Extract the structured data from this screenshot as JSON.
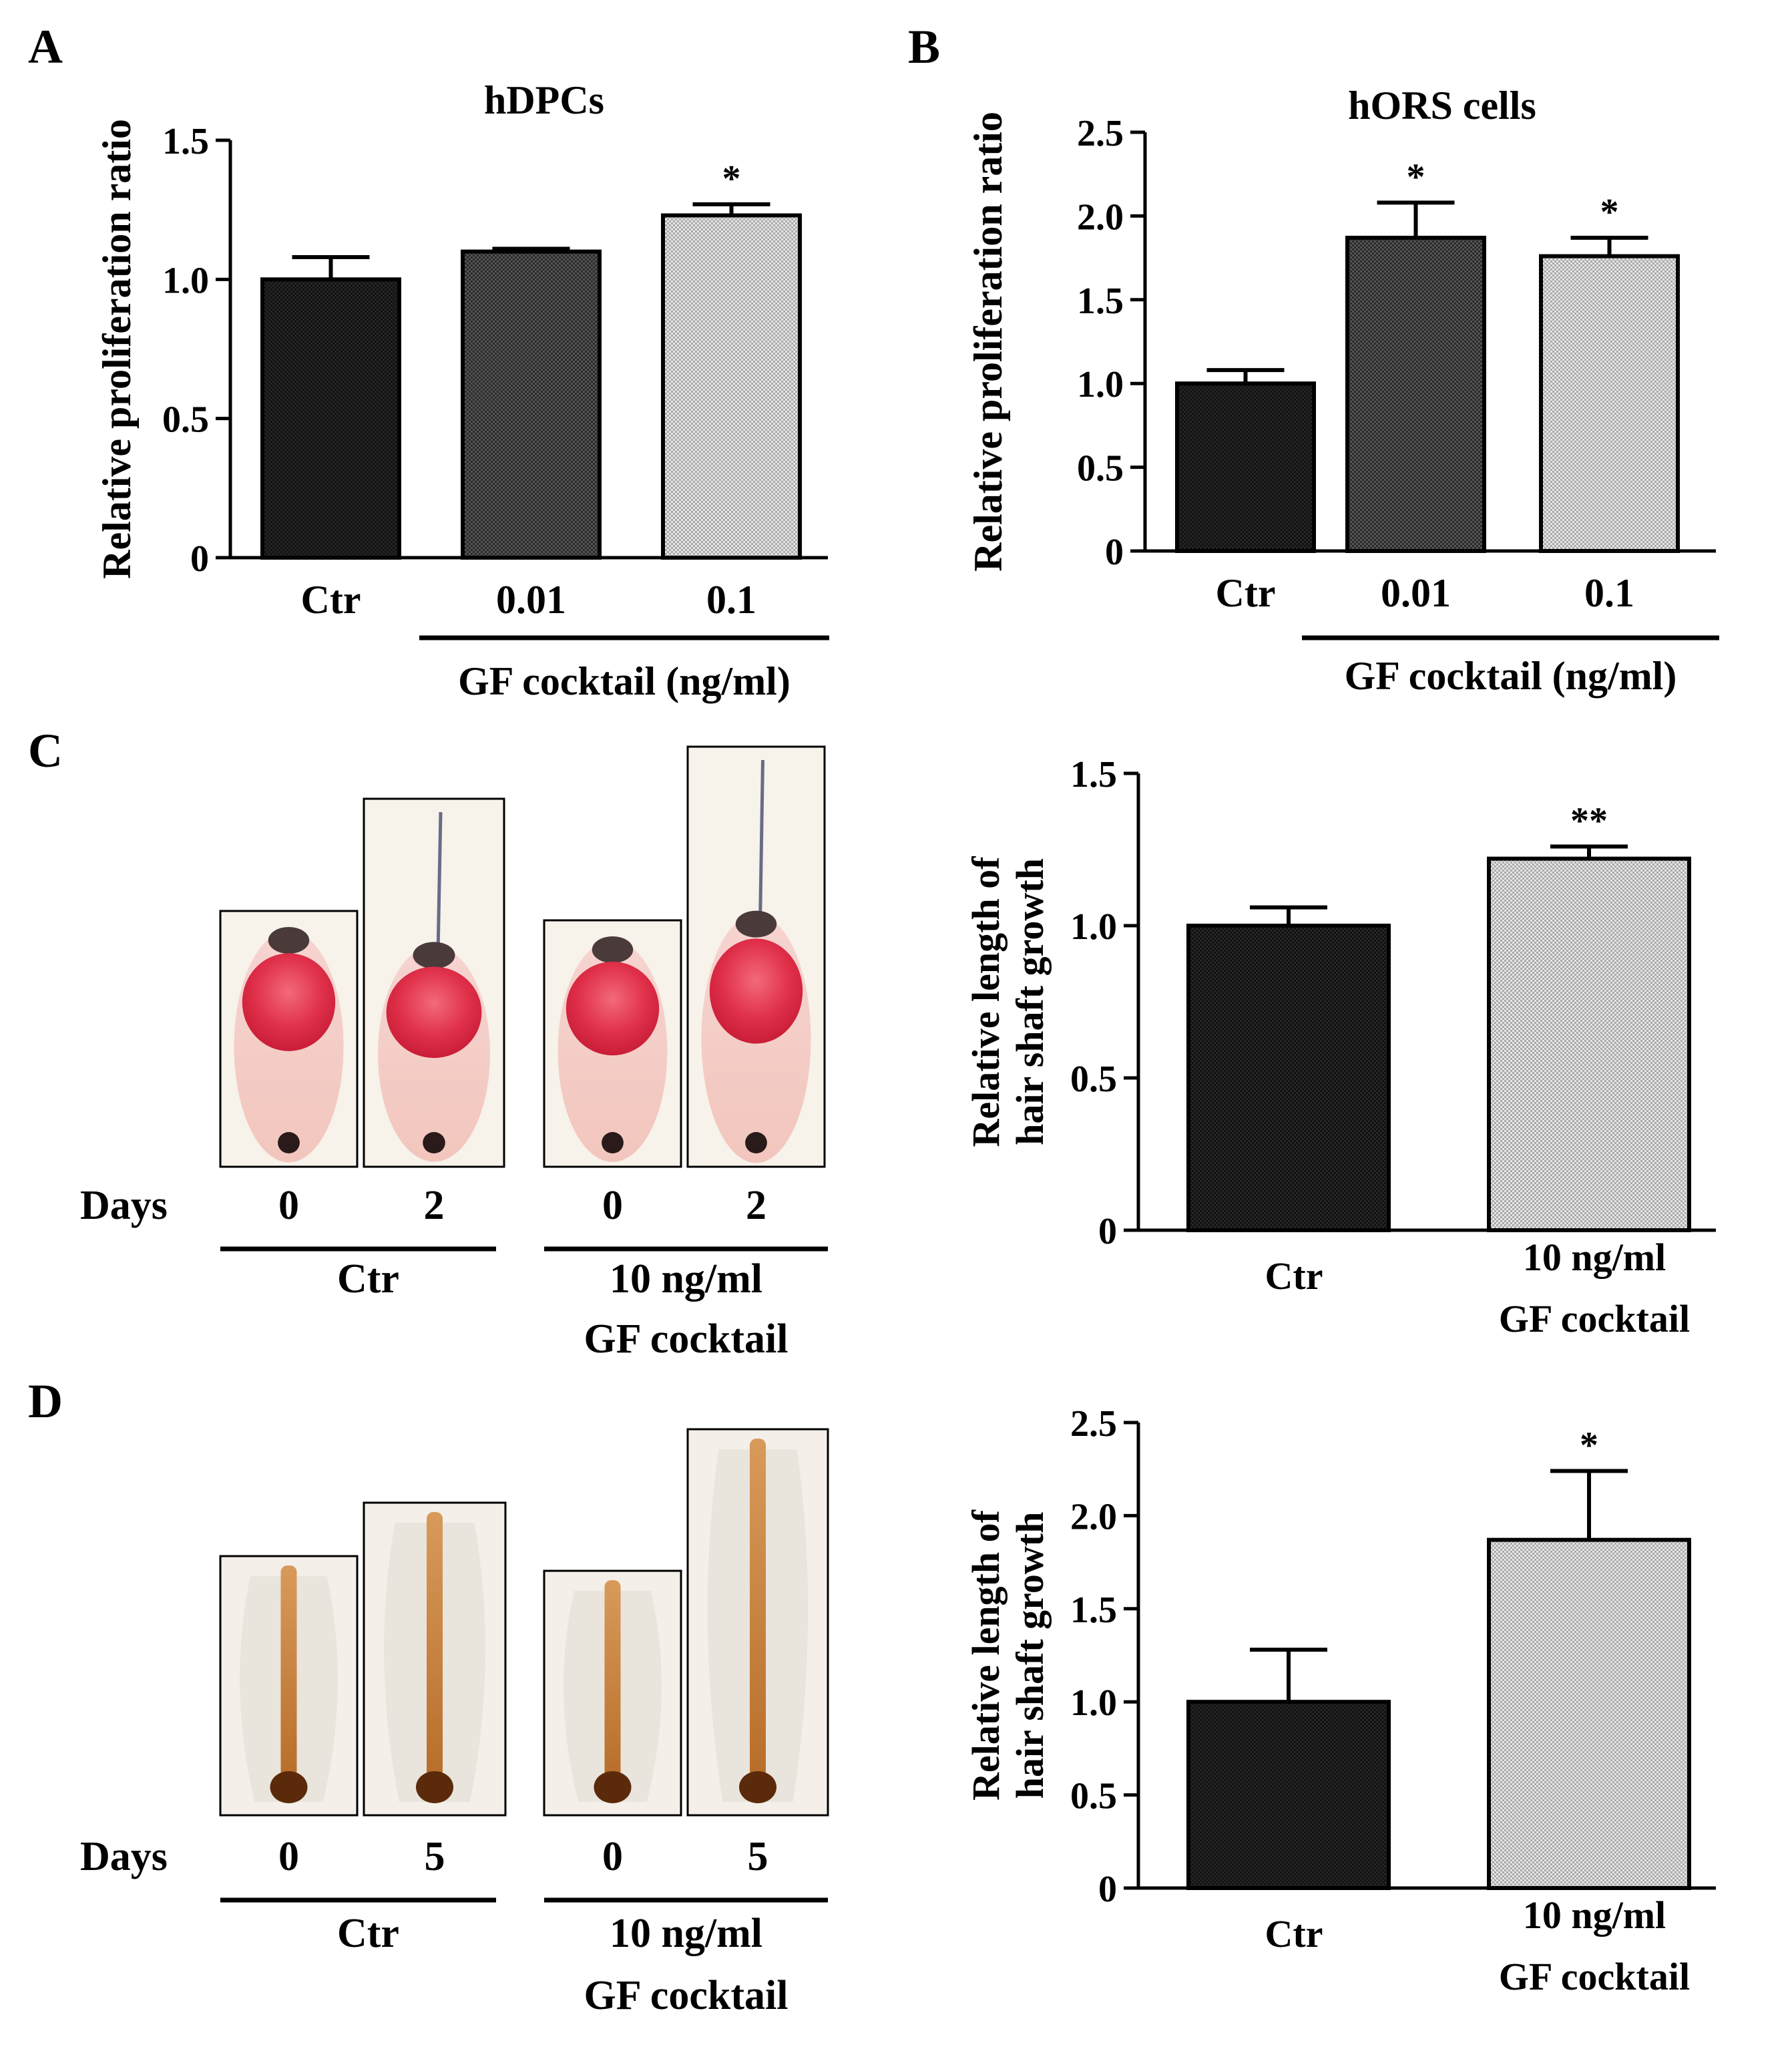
{
  "panel_labels": [
    "A",
    "B",
    "C",
    "D"
  ],
  "colors": {
    "dark": "#1a1a1a",
    "mid": "#3d3d3d",
    "light": "#cfcfcf",
    "frame": "#000000"
  },
  "chart_data": [
    {
      "id": "A",
      "type": "bar",
      "title": "hDPCs",
      "ylabel": "Relative proliferation ratio",
      "xlabel": "",
      "group_label": "GF cocktail (ng/ml)",
      "categories": [
        "Ctr",
        "0.01",
        "0.1"
      ],
      "values": [
        1.0,
        1.1,
        1.23
      ],
      "errors": [
        0.08,
        0.01,
        0.04
      ],
      "significance": [
        "",
        "",
        "*"
      ],
      "ylim": [
        0,
        1.5
      ],
      "yticks": [
        0,
        0.5,
        1.0,
        1.5
      ],
      "ytick_labels": [
        "0",
        "0.5",
        "1.0",
        "1.5"
      ],
      "fills": [
        "dark",
        "mid",
        "light"
      ]
    },
    {
      "id": "B",
      "type": "bar",
      "title": "hORS cells",
      "ylabel": "Relative proliferation ratio",
      "xlabel": "",
      "group_label": "GF cocktail (ng/ml)",
      "categories": [
        "Ctr",
        "0.01",
        "0.1"
      ],
      "values": [
        1.0,
        1.87,
        1.76
      ],
      "errors": [
        0.08,
        0.21,
        0.11
      ],
      "significance": [
        "",
        "*",
        "*"
      ],
      "ylim": [
        0,
        2.5
      ],
      "yticks": [
        0,
        0.5,
        1.0,
        1.5,
        2.0,
        2.5
      ],
      "ytick_labels": [
        "0",
        "0.5",
        "1.0",
        "1.5",
        "2.0",
        "2.5"
      ],
      "fills": [
        "dark",
        "mid",
        "light"
      ]
    },
    {
      "id": "C",
      "type": "bar",
      "title": "",
      "ylabel": [
        "Relative length of",
        "hair shaft growth"
      ],
      "xlabel": "",
      "categories": [
        [
          "Ctr"
        ],
        [
          "10 ng/ml",
          "GF cocktail"
        ]
      ],
      "values": [
        1.0,
        1.22
      ],
      "errors": [
        0.06,
        0.04
      ],
      "significance": [
        "",
        "**"
      ],
      "ylim": [
        0,
        1.5
      ],
      "yticks": [
        0,
        0.5,
        1.0,
        1.5
      ],
      "ytick_labels": [
        "0",
        "0.5",
        "1.0",
        "1.5"
      ],
      "fills": [
        "dark",
        "light"
      ]
    },
    {
      "id": "D",
      "type": "bar",
      "title": "",
      "ylabel": [
        "Relative length of",
        "hair shaft growth"
      ],
      "xlabel": "",
      "categories": [
        [
          "Ctr"
        ],
        [
          "10 ng/ml",
          "GF cocktail"
        ]
      ],
      "values": [
        1.0,
        1.87
      ],
      "errors": [
        0.28,
        0.37
      ],
      "significance": [
        "",
        "*"
      ],
      "ylim": [
        0,
        2.5
      ],
      "yticks": [
        0,
        0.5,
        1.0,
        1.5,
        2.0,
        2.5
      ],
      "ytick_labels": [
        "0",
        "0.5",
        "1.0",
        "1.5",
        "2.0",
        "2.5"
      ],
      "fills": [
        "dark",
        "light"
      ]
    }
  ],
  "photo_panels": [
    {
      "id": "C",
      "stain": "red",
      "days_label": "Days",
      "days": [
        "0",
        "2",
        "0",
        "2"
      ],
      "group_ctr": "Ctr",
      "group_treat": [
        "10 ng/ml",
        "GF cocktail"
      ]
    },
    {
      "id": "D",
      "stain": "brown",
      "days_label": "Days",
      "days": [
        "0",
        "5",
        "0",
        "5"
      ],
      "group_ctr": "Ctr",
      "group_treat": [
        "10 ng/ml",
        "GF cocktail"
      ]
    }
  ]
}
